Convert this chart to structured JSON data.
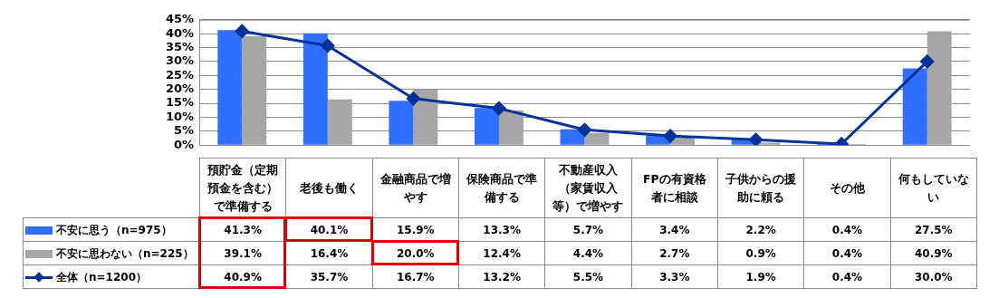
{
  "chart_data": {
    "type": "bar",
    "categories": [
      "預貯金（定期預金を含む）で準備する",
      "老後も働く",
      "金融商品で増やす",
      "保険商品で準備する",
      "不動産収入（家賃収入等）で増やす",
      "FPの有資格者に相談",
      "子供からの援助に頼る",
      "その他",
      "何もしていない"
    ],
    "series": [
      {
        "name": "不安に思う（n=975）",
        "color": "#2f6fff",
        "values": [
          41.3,
          40.1,
          15.9,
          13.3,
          5.7,
          3.4,
          2.2,
          0.4,
          27.5
        ],
        "value_labels": [
          "41.3%",
          "40.1%",
          "15.9%",
          "13.3%",
          "5.7%",
          "3.4%",
          "2.2%",
          "0.4%",
          "27.5%"
        ]
      },
      {
        "name": "不安に思わない（n=225）",
        "color": "#a6a6a6",
        "values": [
          39.1,
          16.4,
          20.0,
          12.4,
          4.4,
          2.7,
          0.9,
          0.4,
          40.9
        ],
        "value_labels": [
          "39.1%",
          "16.4%",
          "20.0%",
          "12.4%",
          "4.4%",
          "2.7%",
          "0.9%",
          "0.4%",
          "40.9%"
        ]
      },
      {
        "name": "全体（n=1200）",
        "type": "line",
        "color": "#003399",
        "marker": "diamond",
        "values": [
          40.9,
          35.7,
          16.7,
          13.2,
          5.5,
          3.3,
          1.9,
          0.4,
          30.0
        ],
        "value_labels": [
          "40.9%",
          "35.7%",
          "16.7%",
          "13.2%",
          "5.5%",
          "3.3%",
          "1.9%",
          "0.4%",
          "30.0%"
        ]
      }
    ],
    "ylim": [
      0,
      45
    ],
    "yticks": [
      {
        "value": 0,
        "label": "0%"
      },
      {
        "value": 5,
        "label": "5%"
      },
      {
        "value": 10,
        "label": "10%"
      },
      {
        "value": 15,
        "label": "15%"
      },
      {
        "value": 20,
        "label": "20%"
      },
      {
        "value": 25,
        "label": "25%"
      },
      {
        "value": 30,
        "label": "30%"
      },
      {
        "value": 35,
        "label": "35%"
      },
      {
        "value": 40,
        "label": "40%"
      },
      {
        "value": 45,
        "label": "45%"
      }
    ],
    "grid": "y",
    "legend": "bottom left"
  }
}
